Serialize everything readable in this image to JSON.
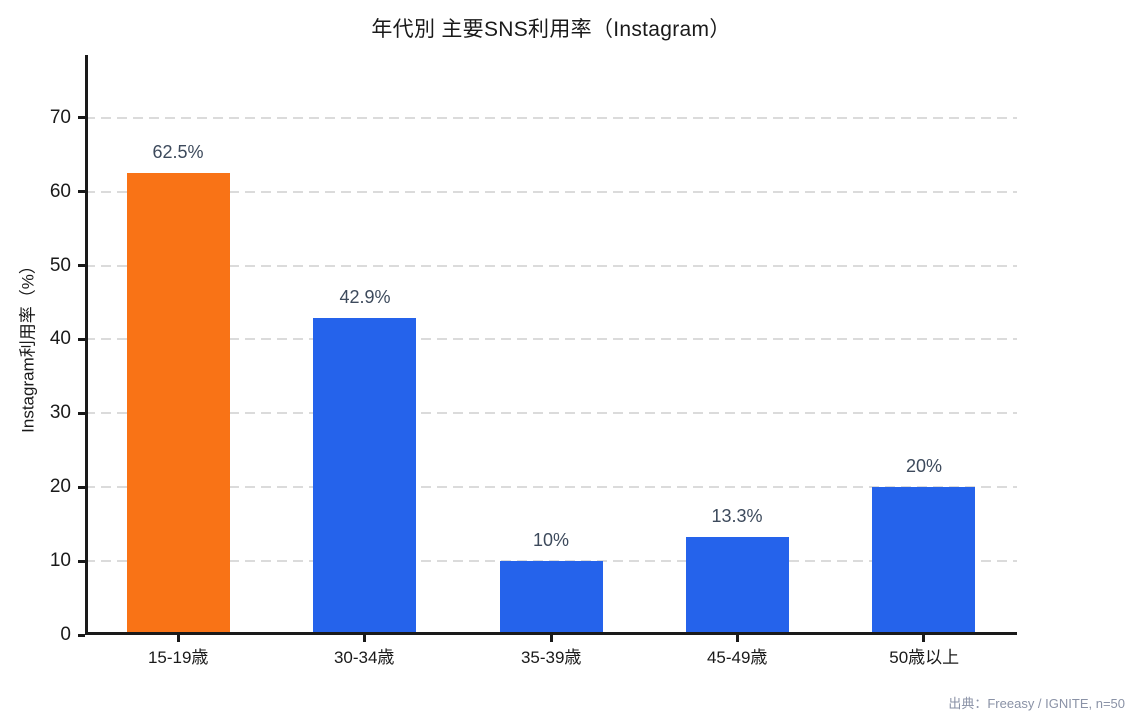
{
  "title": "年代別 主要SNS利用率（Instagram）",
  "source_note": "出典：Freeasy / IGNITE, n=50",
  "colors": {
    "highlight_bar": "#F97316",
    "default_bar": "#2563EB",
    "grid": "#DBDBDB",
    "axis": "#1A1A1A",
    "value_label": "#3D4A5C",
    "source_text": "#8A92A6",
    "background": "#FFFFFF"
  },
  "chart_data": {
    "type": "bar",
    "title": "年代別 主要SNS利用率（Instagram）",
    "categories": [
      "15-19歳",
      "30-34歳",
      "35-39歳",
      "45-49歳",
      "50歳以上"
    ],
    "values": [
      62.5,
      42.9,
      10,
      13.3,
      20
    ],
    "value_labels": [
      "62.5%",
      "42.9%",
      "10%",
      "13.3%",
      "20%"
    ],
    "bar_colors": [
      "#F97316",
      "#2563EB",
      "#2563EB",
      "#2563EB",
      "#2563EB"
    ],
    "xlabel": "",
    "ylabel": "Instagram利用率（%）",
    "ylim": [
      0,
      78.5
    ],
    "yticks": [
      0,
      10,
      20,
      30,
      40,
      50,
      60,
      70
    ],
    "grid": "horizontal-dashed",
    "legend": "none",
    "annotations": "value labels above each bar"
  }
}
